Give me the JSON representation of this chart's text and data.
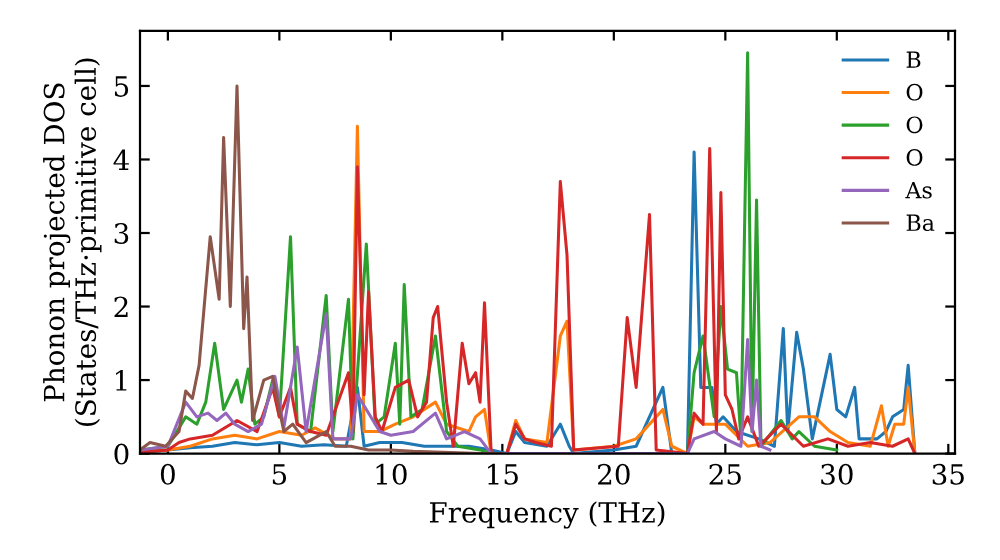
{
  "chart_data": {
    "type": "line",
    "xlabel": "Frequency (THz)",
    "ylabel": "Phonon projected DOS\n(States/THz·primitive cell)",
    "xlim": [
      -1.25,
      35.3
    ],
    "ylim": [
      0,
      5.75
    ],
    "xticks": [
      0,
      5,
      10,
      15,
      20,
      25,
      30,
      35
    ],
    "yticks": [
      0,
      1,
      2,
      3,
      4,
      5
    ],
    "grid": false,
    "legend": "top right",
    "marker": "none",
    "line_style": "solid",
    "series": [
      {
        "name": "B",
        "color": "#1f77b4",
        "x": [
          -1.2,
          0,
          1,
          2,
          3,
          4,
          5,
          6,
          7,
          8,
          8.5,
          8.8,
          9.5,
          10.5,
          11.5,
          12.5,
          13.5,
          14.5,
          15.2,
          15.6,
          16,
          17,
          17.6,
          18,
          18.2,
          20,
          21,
          22.2,
          22.6,
          23.3,
          23.6,
          23.9,
          24.4,
          24.6,
          24.9,
          25.5,
          26.5,
          27.2,
          27.6,
          27.8,
          28.2,
          28.5,
          28.9,
          29.7,
          30,
          30.4,
          30.8,
          31,
          31.8,
          32.2,
          32.5,
          33,
          33.2,
          33.5
        ],
        "values": [
          0.02,
          0.05,
          0.08,
          0.1,
          0.15,
          0.12,
          0.15,
          0.1,
          0.12,
          0.1,
          0.9,
          0.1,
          0.15,
          0.15,
          0.1,
          0.1,
          0.1,
          0.05,
          0.0,
          0.3,
          0.15,
          0.1,
          0.4,
          0.1,
          0.0,
          0.05,
          0.1,
          0.9,
          0.0,
          0.0,
          4.1,
          0.9,
          0.9,
          0.4,
          0.5,
          0.3,
          0.2,
          0.1,
          1.7,
          0.3,
          1.65,
          1.15,
          0.2,
          1.35,
          0.6,
          0.5,
          0.9,
          0.2,
          0.2,
          0.3,
          0.5,
          0.6,
          1.2,
          0.0
        ]
      },
      {
        "name": "O",
        "color": "#ff7f0e",
        "x": [
          -1.2,
          0,
          1,
          2,
          3,
          4,
          5,
          6,
          6.6,
          7.5,
          8.2,
          8.5,
          8.8,
          9.5,
          10.2,
          11,
          12,
          12.5,
          13.5,
          13.8,
          14.2,
          14.5,
          15.2,
          15.6,
          16,
          17,
          17.6,
          17.9,
          18.2,
          20,
          21,
          22.2,
          22.6,
          23.3,
          23.6,
          24,
          25,
          26,
          27,
          28.3,
          29,
          29.7,
          30.5,
          31.5,
          32,
          32.3,
          32.6,
          33,
          33.2,
          33.5
        ],
        "values": [
          0.02,
          0.05,
          0.1,
          0.2,
          0.25,
          0.2,
          0.3,
          0.25,
          0.35,
          0.2,
          0.2,
          4.45,
          0.3,
          0.3,
          0.4,
          0.5,
          0.7,
          0.4,
          0.3,
          0.5,
          0.6,
          0.0,
          0.0,
          0.45,
          0.2,
          0.15,
          1.6,
          1.8,
          0.05,
          0.1,
          0.2,
          0.6,
          0.1,
          0.0,
          0.5,
          0.4,
          0.4,
          0.1,
          0.15,
          0.5,
          0.5,
          0.3,
          0.15,
          0.1,
          0.65,
          0.1,
          0.4,
          0.4,
          0.9,
          0.0
        ]
      },
      {
        "name": "O",
        "color": "#2ca02c",
        "x": [
          -1.2,
          0,
          0.8,
          1.3,
          1.7,
          2.1,
          2.5,
          3.1,
          3.3,
          3.6,
          3.9,
          4.3,
          4.7,
          5.0,
          5.5,
          5.8,
          6.4,
          7.1,
          7.4,
          8.1,
          8.3,
          8.9,
          9.3,
          9.7,
          10.2,
          10.4,
          10.6,
          10.9,
          11.4,
          12,
          12.5,
          13,
          14,
          14.5,
          23.3,
          23.6,
          24.0,
          24.5,
          24.8,
          25.1,
          25.5,
          25.7,
          26.0,
          26.2,
          26.4,
          26.6,
          27.5,
          28,
          28.3,
          29,
          30
        ],
        "values": [
          0.05,
          0.1,
          0.5,
          0.4,
          0.7,
          1.5,
          0.6,
          1.0,
          0.7,
          1.15,
          0.4,
          0.5,
          1.0,
          0.5,
          2.95,
          0.4,
          0.3,
          2.15,
          0.3,
          2.1,
          0.2,
          2.85,
          0.4,
          0.5,
          1.5,
          0.4,
          2.3,
          0.5,
          0.6,
          1.6,
          0.3,
          0.1,
          0.05,
          0.0,
          0.0,
          1.1,
          1.6,
          0.5,
          2.0,
          1.15,
          1.1,
          0.2,
          5.45,
          0.3,
          3.45,
          0.1,
          0.45,
          0.2,
          0.3,
          0.1,
          0.05
        ]
      },
      {
        "name": "O",
        "color": "#d62728",
        "x": [
          -1.2,
          0,
          0.5,
          1,
          2,
          3.1,
          4,
          4.7,
          5.0,
          5.5,
          5.8,
          6.4,
          7.1,
          8.1,
          8.3,
          8.5,
          8.8,
          9.0,
          9.3,
          9.6,
          10.2,
          10.8,
          11.2,
          11.6,
          11.9,
          12.1,
          12.5,
          12.8,
          13.2,
          13.5,
          13.8,
          14.0,
          14.2,
          14.5,
          15.2,
          15.6,
          16,
          16.5,
          17.2,
          17.6,
          17.9,
          18.2,
          20.2,
          20.6,
          21.0,
          21.6,
          21.9,
          23.3,
          23.6,
          24.0,
          24.3,
          24.6,
          24.8,
          25.0,
          25.3,
          25.6,
          26,
          26.5,
          27.5,
          28.5,
          29.6,
          30.5,
          31.5,
          32.5,
          33.2,
          33.5
        ],
        "values": [
          0.02,
          0.05,
          0.15,
          0.2,
          0.25,
          0.45,
          0.3,
          0.9,
          0.5,
          0.9,
          0.4,
          0.3,
          0.25,
          1.1,
          0.3,
          3.9,
          0.8,
          2.2,
          0.5,
          0.3,
          0.9,
          1.0,
          0.5,
          0.7,
          1.85,
          2.0,
          0.7,
          0.1,
          1.5,
          0.95,
          1.1,
          0.7,
          2.05,
          0.0,
          0.0,
          0.4,
          0.2,
          0.15,
          0.1,
          3.7,
          2.7,
          0.05,
          0.1,
          1.85,
          0.9,
          3.25,
          0.05,
          0.0,
          0.55,
          0.4,
          4.15,
          0.3,
          3.55,
          0.8,
          0.6,
          0.2,
          0.5,
          0.1,
          0.4,
          0.1,
          0.2,
          0.1,
          0.15,
          0.1,
          0.2,
          0.0
        ]
      },
      {
        "name": "As",
        "color": "#9467bd",
        "x": [
          -1.2,
          0,
          0.8,
          1.3,
          1.8,
          2.2,
          2.6,
          3.0,
          3.6,
          4.2,
          4.8,
          5.2,
          5.8,
          6.2,
          7.1,
          7.4,
          8.2,
          8.5,
          9.5,
          10,
          11,
          12,
          12.5,
          13.3,
          14,
          14.5,
          23.3,
          23.6,
          24.5,
          25,
          25.7,
          26.0,
          26.2,
          26.4,
          26.6,
          27
        ],
        "values": [
          0.05,
          0.1,
          0.7,
          0.5,
          0.55,
          0.45,
          0.55,
          0.4,
          0.3,
          0.4,
          1.05,
          0.35,
          1.45,
          0.3,
          1.9,
          0.2,
          0.2,
          0.8,
          0.3,
          0.25,
          0.3,
          0.55,
          0.2,
          0.3,
          0.2,
          0.0,
          0.0,
          0.2,
          0.3,
          0.2,
          0.1,
          1.55,
          0.3,
          1.0,
          0.1,
          0.05
        ]
      },
      {
        "name": "Ba",
        "color": "#8c564b",
        "x": [
          -1.25,
          -0.8,
          -0.1,
          0.5,
          0.8,
          1.1,
          1.4,
          1.9,
          2.3,
          2.5,
          2.8,
          3.1,
          3.4,
          3.55,
          3.8,
          4.3,
          4.7,
          5.2,
          5.6,
          6.2,
          7.1,
          7.5,
          8.2,
          9,
          10,
          11,
          12,
          13,
          14,
          15
        ],
        "values": [
          0.05,
          0.15,
          0.1,
          0.3,
          0.85,
          0.75,
          1.2,
          2.95,
          2.1,
          4.3,
          2.0,
          5.0,
          1.7,
          2.4,
          0.45,
          1.0,
          1.05,
          0.3,
          0.4,
          0.15,
          0.3,
          0.1,
          0.1,
          0.05,
          0.05,
          0.03,
          0.02,
          0.01,
          0.0,
          0.0
        ]
      }
    ]
  }
}
